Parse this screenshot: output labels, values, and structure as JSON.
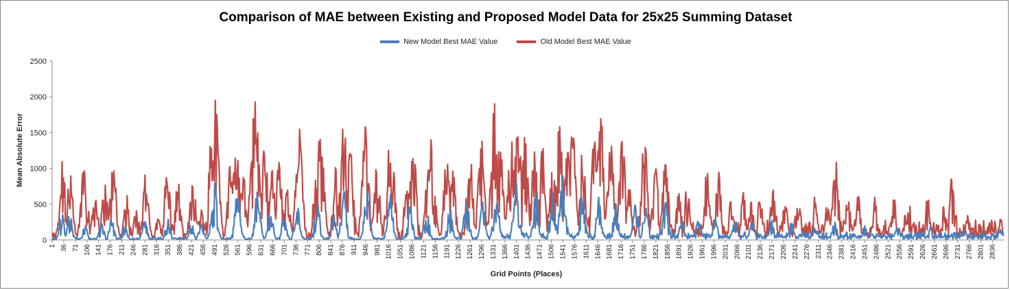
{
  "chart_data": {
    "type": "line",
    "title": "Comparison of MAE between Existing and Proposed Model Data for 25x25 Summing Dataset",
    "xlabel": "Grid Points (Places)",
    "ylabel": "Mean Absolute Error",
    "ylim": [
      0,
      2500
    ],
    "yticks": [
      0,
      500,
      1000,
      1500,
      2000,
      2500
    ],
    "x_range": [
      1,
      2870
    ],
    "xtick_labels": [
      "1",
      "36",
      "71",
      "106",
      "141",
      "176",
      "211",
      "246",
      "281",
      "316",
      "351",
      "386",
      "421",
      "456",
      "491",
      "526",
      "561",
      "596",
      "631",
      "666",
      "701",
      "736",
      "771",
      "806",
      "841",
      "876",
      "911",
      "946",
      "981",
      "1016",
      "1051",
      "1086",
      "1121",
      "1156",
      "1191",
      "1226",
      "1261",
      "1296",
      "1331",
      "1366",
      "1401",
      "1436",
      "1471",
      "1506",
      "1541",
      "1576",
      "1611",
      "1646",
      "1681",
      "1716",
      "1751",
      "1786",
      "1821",
      "1856",
      "1891",
      "1926",
      "1961",
      "1996",
      "2031",
      "2066",
      "2101",
      "2136",
      "2171",
      "2206",
      "2241",
      "2276",
      "2311",
      "2346",
      "2381",
      "2416",
      "2451",
      "2486",
      "2521",
      "2556",
      "2591",
      "2626",
      "2661",
      "2696",
      "2731",
      "2766",
      "2801",
      "2836"
    ],
    "grid": false,
    "legend_position": "top-center",
    "series": [
      {
        "name": "New Model Best MAE Value",
        "color": "#4a7ebb",
        "peaks": [
          [
            30,
            400
          ],
          [
            55,
            380
          ],
          [
            100,
            200
          ],
          [
            150,
            250
          ],
          [
            180,
            300
          ],
          [
            220,
            200
          ],
          [
            280,
            300
          ],
          [
            350,
            300
          ],
          [
            420,
            250
          ],
          [
            450,
            300
          ],
          [
            490,
            800
          ],
          [
            560,
            700
          ],
          [
            620,
            700
          ],
          [
            660,
            450
          ],
          [
            700,
            350
          ],
          [
            740,
            500
          ],
          [
            800,
            550
          ],
          [
            850,
            350
          ],
          [
            880,
            700
          ],
          [
            950,
            700
          ],
          [
            1020,
            650
          ],
          [
            1080,
            500
          ],
          [
            1130,
            450
          ],
          [
            1200,
            450
          ],
          [
            1250,
            600
          ],
          [
            1300,
            550
          ],
          [
            1340,
            700
          ],
          [
            1400,
            850
          ],
          [
            1460,
            700
          ],
          [
            1510,
            700
          ],
          [
            1540,
            900
          ],
          [
            1600,
            650
          ],
          [
            1650,
            600
          ],
          [
            1700,
            550
          ],
          [
            1760,
            500
          ],
          [
            1790,
            550
          ],
          [
            1850,
            600
          ],
          [
            1900,
            300
          ],
          [
            1950,
            350
          ],
          [
            2000,
            300
          ],
          [
            2060,
            300
          ],
          [
            2110,
            250
          ],
          [
            2170,
            300
          ],
          [
            2230,
            250
          ],
          [
            2300,
            200
          ],
          [
            2360,
            250
          ],
          [
            2450,
            200
          ],
          [
            2550,
            200
          ],
          [
            2650,
            200
          ],
          [
            2750,
            180
          ],
          [
            2860,
            150
          ]
        ]
      },
      {
        "name": "Old Model Best MAE Value",
        "color": "#be4b48",
        "peaks": [
          [
            32,
            1100
          ],
          [
            55,
            920
          ],
          [
            98,
            1310
          ],
          [
            130,
            750
          ],
          [
            160,
            850
          ],
          [
            185,
            1100
          ],
          [
            225,
            640
          ],
          [
            255,
            450
          ],
          [
            282,
            980
          ],
          [
            320,
            300
          ],
          [
            348,
            1040
          ],
          [
            380,
            860
          ],
          [
            425,
            1000
          ],
          [
            450,
            520
          ],
          [
            483,
            1580
          ],
          [
            492,
            1960
          ],
          [
            540,
            1150
          ],
          [
            555,
            1520
          ],
          [
            576,
            1000
          ],
          [
            605,
            1180
          ],
          [
            613,
            1990
          ],
          [
            640,
            1470
          ],
          [
            664,
            1000
          ],
          [
            685,
            1080
          ],
          [
            710,
            700
          ],
          [
            745,
            1580
          ],
          [
            800,
            1340
          ],
          [
            810,
            1610
          ],
          [
            855,
            1010
          ],
          [
            880,
            1620
          ],
          [
            900,
            1250
          ],
          [
            945,
            1580
          ],
          [
            980,
            1100
          ],
          [
            1018,
            1320
          ],
          [
            1025,
            1250
          ],
          [
            1070,
            850
          ],
          [
            1090,
            1320
          ],
          [
            1135,
            1080
          ],
          [
            1145,
            1430
          ],
          [
            1190,
            1150
          ],
          [
            1210,
            1000
          ],
          [
            1260,
            1230
          ],
          [
            1295,
            1410
          ],
          [
            1335,
            1900
          ],
          [
            1350,
            1470
          ],
          [
            1385,
            1400
          ],
          [
            1405,
            1660
          ],
          [
            1425,
            1500
          ],
          [
            1455,
            1290
          ],
          [
            1480,
            1330
          ],
          [
            1510,
            1000
          ],
          [
            1530,
            1690
          ],
          [
            1555,
            1250
          ],
          [
            1570,
            1510
          ],
          [
            1600,
            1250
          ],
          [
            1635,
            1400
          ],
          [
            1655,
            1720
          ],
          [
            1685,
            1340
          ],
          [
            1720,
            1420
          ],
          [
            1740,
            750
          ],
          [
            1785,
            1500
          ],
          [
            1820,
            1000
          ],
          [
            1850,
            1130
          ],
          [
            1890,
            650
          ],
          [
            1915,
            760
          ],
          [
            1975,
            980
          ],
          [
            2010,
            950
          ],
          [
            2050,
            650
          ],
          [
            2085,
            680
          ],
          [
            2110,
            600
          ],
          [
            2135,
            600
          ],
          [
            2175,
            750
          ],
          [
            2210,
            600
          ],
          [
            2250,
            700
          ],
          [
            2300,
            600
          ],
          [
            2340,
            560
          ],
          [
            2363,
            1110
          ],
          [
            2400,
            600
          ],
          [
            2430,
            650
          ],
          [
            2480,
            600
          ],
          [
            2540,
            600
          ],
          [
            2580,
            700
          ],
          [
            2640,
            600
          ],
          [
            2690,
            500
          ],
          [
            2715,
            950
          ],
          [
            2760,
            400
          ],
          [
            2830,
            300
          ],
          [
            2860,
            300
          ]
        ]
      }
    ]
  }
}
